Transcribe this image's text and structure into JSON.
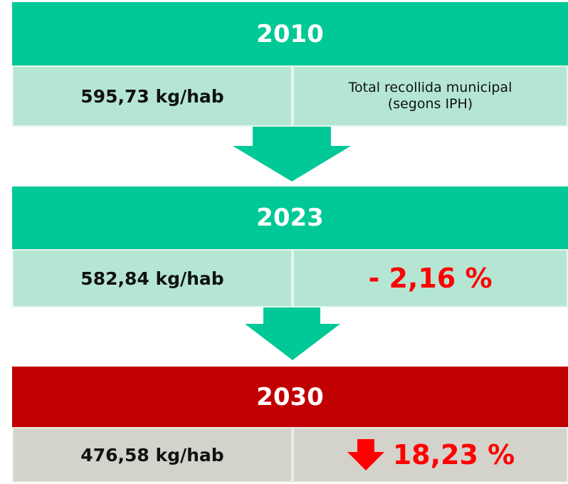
{
  "blocks": [
    {
      "year": "2010",
      "value": "595,73 kg/hab",
      "note": [
        "Total recollida municipal",
        "(segons IPH)"
      ]
    },
    {
      "year": "2023",
      "value": "582,84 kg/hab",
      "change": "- 2,16 %"
    },
    {
      "year": "2030",
      "value": "476,58 kg/hab",
      "change": "18,23 %"
    }
  ]
}
